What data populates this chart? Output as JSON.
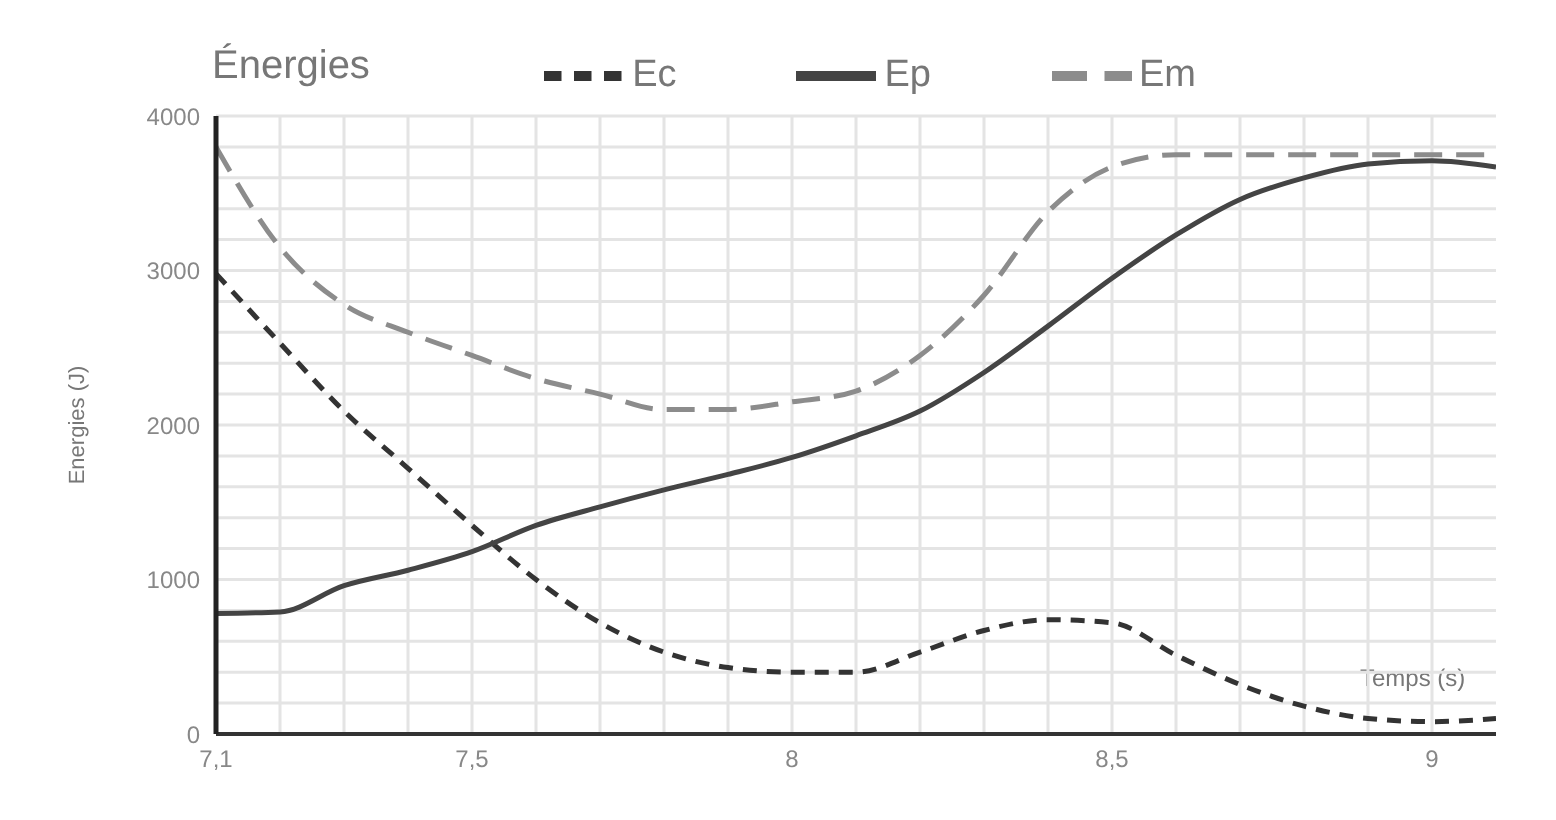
{
  "chart_data": {
    "type": "line",
    "title": "Énergies",
    "xlabel": "Temps (s)",
    "ylabel": "Energies (J)",
    "x": [
      7.1,
      7.2,
      7.3,
      7.4,
      7.5,
      7.6,
      7.7,
      7.8,
      7.9,
      8.0,
      8.1,
      8.2,
      8.3,
      8.4,
      8.5,
      8.6,
      8.7,
      8.8,
      8.9,
      9.0,
      9.1
    ],
    "series": [
      {
        "name": "Ec",
        "color": "#333333",
        "line_style": "dashed",
        "values": [
          2980,
          2530,
          2090,
          1720,
          1350,
          1000,
          720,
          530,
          430,
          400,
          400,
          530,
          670,
          740,
          720,
          510,
          320,
          180,
          100,
          80,
          100
        ]
      },
      {
        "name": "Ep",
        "color": "#444444",
        "line_style": "solid",
        "values": [
          780,
          790,
          960,
          1060,
          1180,
          1350,
          1470,
          1580,
          1680,
          1790,
          1930,
          2090,
          2340,
          2640,
          2950,
          3230,
          3460,
          3600,
          3690,
          3710,
          3670
        ]
      },
      {
        "name": "Em",
        "color": "#8c8c8c",
        "line_style": "dashed",
        "values": [
          3800,
          3150,
          2780,
          2600,
          2450,
          2300,
          2200,
          2100,
          2100,
          2150,
          2220,
          2450,
          2840,
          3380,
          3670,
          3750,
          3750,
          3750,
          3750,
          3750,
          3750
        ]
      }
    ],
    "xlim": [
      7.1,
      9.1
    ],
    "xticks": [
      {
        "value": 7.1,
        "label": "7,1"
      },
      {
        "value": 7.2,
        "label": null
      },
      {
        "value": 7.3,
        "label": null
      },
      {
        "value": 7.4,
        "label": null
      },
      {
        "value": 7.5,
        "label": "7,5"
      },
      {
        "value": 7.6,
        "label": null
      },
      {
        "value": 7.7,
        "label": null
      },
      {
        "value": 7.8,
        "label": null
      },
      {
        "value": 7.9,
        "label": null
      },
      8,
      {
        "value": 8.1,
        "label": null
      },
      {
        "value": 8.2,
        "label": null
      },
      {
        "value": 8.3,
        "label": null
      },
      {
        "value": 8.4,
        "label": null
      },
      {
        "value": 8.5,
        "label": "8,5"
      },
      {
        "value": 8.6,
        "label": null
      },
      {
        "value": 8.7,
        "label": null
      },
      {
        "value": 8.8,
        "label": null
      },
      {
        "value": 8.9,
        "label": null
      },
      9
    ],
    "ylim": [
      0,
      4000
    ],
    "yticks": [
      0,
      {
        "value": 200,
        "label": null
      },
      {
        "value": 400,
        "label": null
      },
      {
        "value": 600,
        "label": null
      },
      {
        "value": 800,
        "label": null
      },
      1000,
      {
        "value": 1200,
        "label": null
      },
      {
        "value": 1400,
        "label": null
      },
      {
        "value": 1600,
        "label": null
      },
      {
        "value": 1800,
        "label": null
      },
      2000,
      {
        "value": 2200,
        "label": null
      },
      {
        "value": 2400,
        "label": null
      },
      {
        "value": 2600,
        "label": null
      },
      {
        "value": 2800,
        "label": null
      },
      3000,
      {
        "value": 3200,
        "label": null
      },
      {
        "value": 3400,
        "label": null
      },
      {
        "value": 3600,
        "label": null
      },
      {
        "value": 3800,
        "label": null
      },
      4000
    ],
    "grid": true,
    "legend": "top right",
    "marker": "none"
  }
}
